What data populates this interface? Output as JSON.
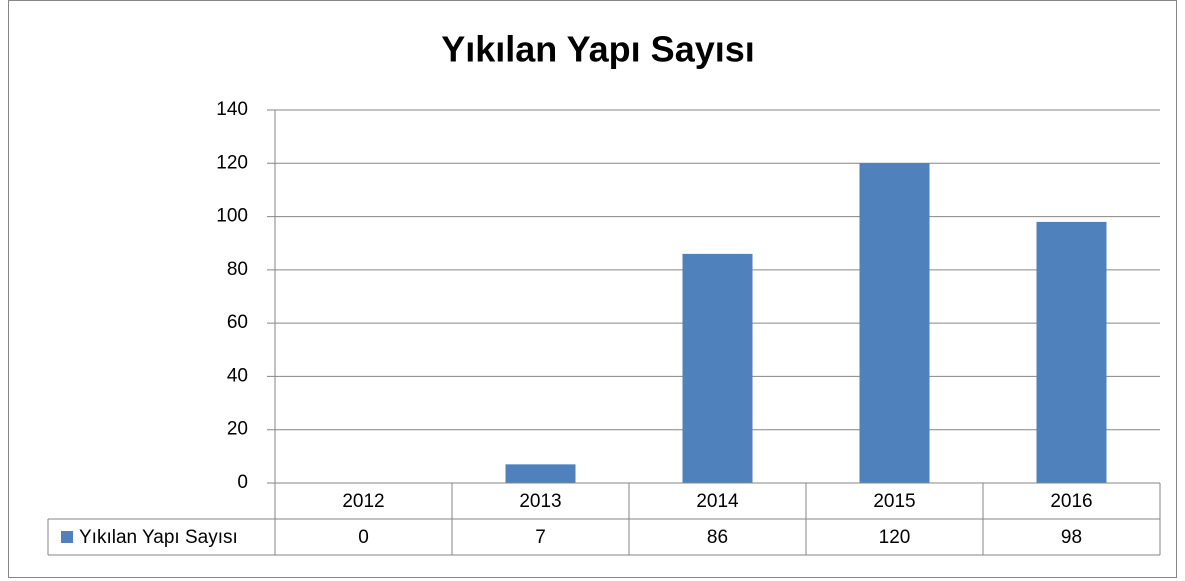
{
  "chart_data": {
    "type": "bar",
    "title": "Yıkılan Yapı Sayısı",
    "categories": [
      "2012",
      "2013",
      "2014",
      "2015",
      "2016"
    ],
    "series": [
      {
        "name": "Yıkılan Yapı Sayısı",
        "color": "#4f81bd",
        "values": [
          0,
          7,
          86,
          120,
          98
        ]
      }
    ],
    "ylim": [
      0,
      140
    ],
    "yticks": [
      0,
      20,
      40,
      60,
      80,
      100,
      120,
      140
    ],
    "grid": true,
    "legend": "data-table"
  }
}
